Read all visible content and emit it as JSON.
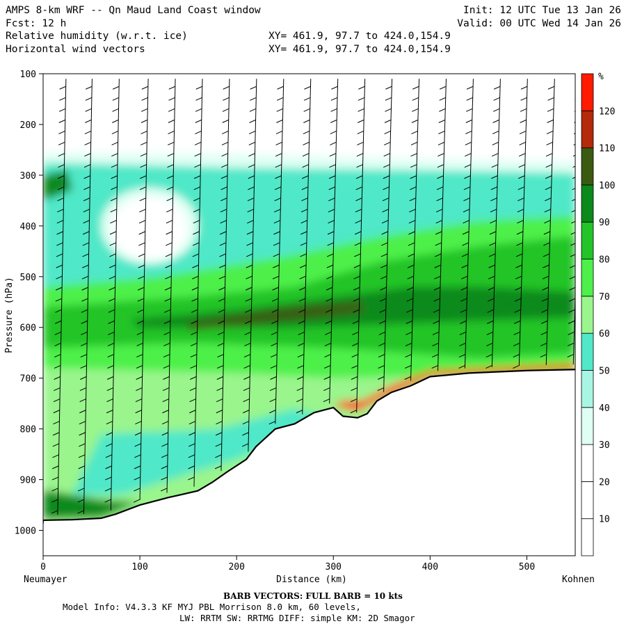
{
  "header": {
    "title_left": "AMPS 8-km WRF -- Qn Maud Land Coast window",
    "fcst": "Fcst:   12 h",
    "field1": "Relative humidity (w.r.t. ice)",
    "field2": "Horizontal wind vectors",
    "init": "Init: 12 UTC Tue 13 Jan 26",
    "valid": "Valid: 00 UTC Wed 14 Jan 26",
    "xy1": "XY= 461.9, 97.7 to 424.0,154.9",
    "xy2": "XY= 461.9, 97.7 to 424.0,154.9"
  },
  "chart_data": {
    "type": "heatmap",
    "xlabel": "Distance (km)",
    "ylabel": "Pressure (hPa)",
    "x_start_label": "Neumayer",
    "x_end_label": "Kohnen",
    "xlim": [
      0,
      550
    ],
    "ylim": [
      1050,
      100
    ],
    "x_ticks": [
      0,
      100,
      200,
      300,
      400,
      500
    ],
    "y_ticks": [
      100,
      200,
      300,
      400,
      500,
      600,
      700,
      800,
      900,
      1000
    ],
    "colorbar": {
      "unit": "%",
      "levels": [
        10,
        20,
        30,
        40,
        50,
        60,
        70,
        80,
        90,
        100,
        110,
        120
      ],
      "colors": [
        "#ffffff",
        "#ffffff",
        "#ffffff",
        "#e0fff4",
        "#a8f5e4",
        "#50e8c8",
        "#9af58c",
        "#4ef04a",
        "#22c428",
        "#0a8a1a",
        "#3a5a12",
        "#b42a0a",
        "#ff1a00"
      ]
    },
    "terrain_surface_pressure": [
      [
        0,
        980
      ],
      [
        30,
        979
      ],
      [
        60,
        976
      ],
      [
        75,
        968
      ],
      [
        100,
        950
      ],
      [
        130,
        935
      ],
      [
        160,
        922
      ],
      [
        175,
        905
      ],
      [
        190,
        885
      ],
      [
        210,
        860
      ],
      [
        220,
        835
      ],
      [
        240,
        800
      ],
      [
        260,
        790
      ],
      [
        280,
        768
      ],
      [
        300,
        758
      ],
      [
        310,
        775
      ],
      [
        325,
        778
      ],
      [
        335,
        770
      ],
      [
        345,
        745
      ],
      [
        360,
        728
      ],
      [
        380,
        715
      ],
      [
        400,
        697
      ],
      [
        440,
        690
      ],
      [
        500,
        685
      ],
      [
        550,
        683
      ]
    ],
    "barb_columns_km": [
      15,
      42,
      70,
      100,
      128,
      156,
      184,
      212,
      240,
      268,
      296,
      324,
      352,
      380,
      408,
      436,
      464,
      492,
      520,
      548
    ]
  },
  "footer": {
    "barb_info": "BARB VECTORS:  FULL BARB = 10 kts",
    "model_info": "Model Info: V4.3.3   KF      MYJ PBL  Morrison          8.0 km,  60 levels,",
    "model_info2": "LW: RRTM SW: RRTMG   DIFF: simple KM: 2D Smagor"
  }
}
